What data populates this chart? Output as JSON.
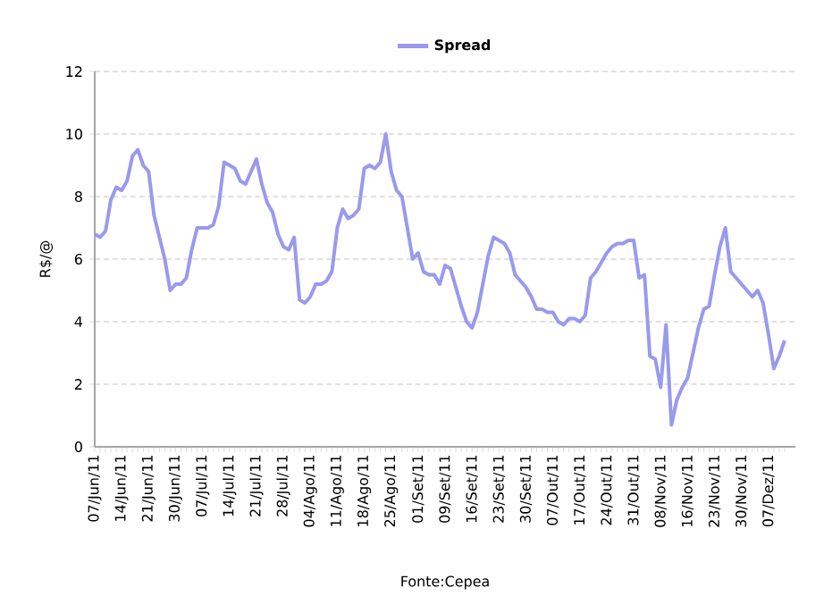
{
  "chart_data": {
    "type": "line",
    "ylabel": "R$/@",
    "categories": [
      "07/Jun/11",
      null,
      null,
      null,
      null,
      "14/Jun/11",
      null,
      null,
      null,
      null,
      "21/Jun/11",
      null,
      null,
      null,
      null,
      "30/Jun/11",
      null,
      null,
      null,
      null,
      "07/Jul/11",
      null,
      null,
      null,
      null,
      "14/Jul/11",
      null,
      null,
      null,
      null,
      "21/Jul/11",
      null,
      null,
      null,
      null,
      "28/Jul/11",
      null,
      null,
      null,
      null,
      "04/Ago/11",
      null,
      null,
      null,
      null,
      "11/Ago/11",
      null,
      null,
      null,
      null,
      "18/Ago/11",
      null,
      null,
      null,
      null,
      "25/Ago/11",
      null,
      null,
      null,
      null,
      "01/Set/11",
      null,
      null,
      null,
      null,
      "09/Set/11",
      null,
      null,
      null,
      null,
      "16/Set/11",
      null,
      null,
      null,
      null,
      "23/Set/11",
      null,
      null,
      null,
      null,
      "30/Set/11",
      null,
      null,
      null,
      null,
      "07/Out/11",
      null,
      null,
      null,
      null,
      "17/Out/11",
      null,
      null,
      null,
      null,
      "24/Out/11",
      null,
      null,
      null,
      null,
      "31/Out/11",
      null,
      null,
      null,
      null,
      "08/Nov/11",
      null,
      null,
      null,
      null,
      "16/Nov/11",
      null,
      null,
      null,
      null,
      "23/Nov/11",
      null,
      null,
      null,
      null,
      "30/Nov/11",
      null,
      null,
      null,
      null,
      "07/Dez/11",
      null,
      null,
      null
    ],
    "series": [
      {
        "name": "Spread",
        "color": "#9999ee",
        "values": [
          6.8,
          6.7,
          6.9,
          7.9,
          8.3,
          8.2,
          8.5,
          9.3,
          9.5,
          9.0,
          8.8,
          7.4,
          6.7,
          6.0,
          5.0,
          5.2,
          5.2,
          5.4,
          6.3,
          7.0,
          7.0,
          7.0,
          7.1,
          7.7,
          9.1,
          9.0,
          8.9,
          8.5,
          8.4,
          8.8,
          9.2,
          8.4,
          7.8,
          7.5,
          6.8,
          6.4,
          6.3,
          6.7,
          4.7,
          4.6,
          4.8,
          5.2,
          5.2,
          5.3,
          5.6,
          7.0,
          7.6,
          7.3,
          7.4,
          7.6,
          8.9,
          9.0,
          8.9,
          9.1,
          10.0,
          8.8,
          8.2,
          8.0,
          7.0,
          6.0,
          6.2,
          5.6,
          5.5,
          5.5,
          5.2,
          5.8,
          5.7,
          5.1,
          4.5,
          4.0,
          3.8,
          4.3,
          5.2,
          6.1,
          6.7,
          6.6,
          6.5,
          6.2,
          5.5,
          5.3,
          5.1,
          4.8,
          4.4,
          4.4,
          4.3,
          4.3,
          4.0,
          3.9,
          4.1,
          4.1,
          4.0,
          4.2,
          5.4,
          5.6,
          5.9,
          6.2,
          6.4,
          6.5,
          6.5,
          6.6,
          6.6,
          5.4,
          5.5,
          2.9,
          2.8,
          1.9,
          3.9,
          0.7,
          1.5,
          1.9,
          2.2,
          3.0,
          3.8,
          4.4,
          4.5,
          5.5,
          6.4,
          7.0,
          5.6,
          5.4,
          5.2,
          5.0,
          4.8,
          5.0,
          4.6,
          3.6,
          2.5,
          2.9,
          3.4
        ]
      }
    ],
    "ylim": [
      0,
      12
    ],
    "yticks": [
      0,
      2,
      4,
      6,
      8,
      10,
      12
    ],
    "grid": "y",
    "legend": "top",
    "marker": "none",
    "line_style": "solid",
    "annotations": [
      "Fonte:Cepea"
    ]
  }
}
